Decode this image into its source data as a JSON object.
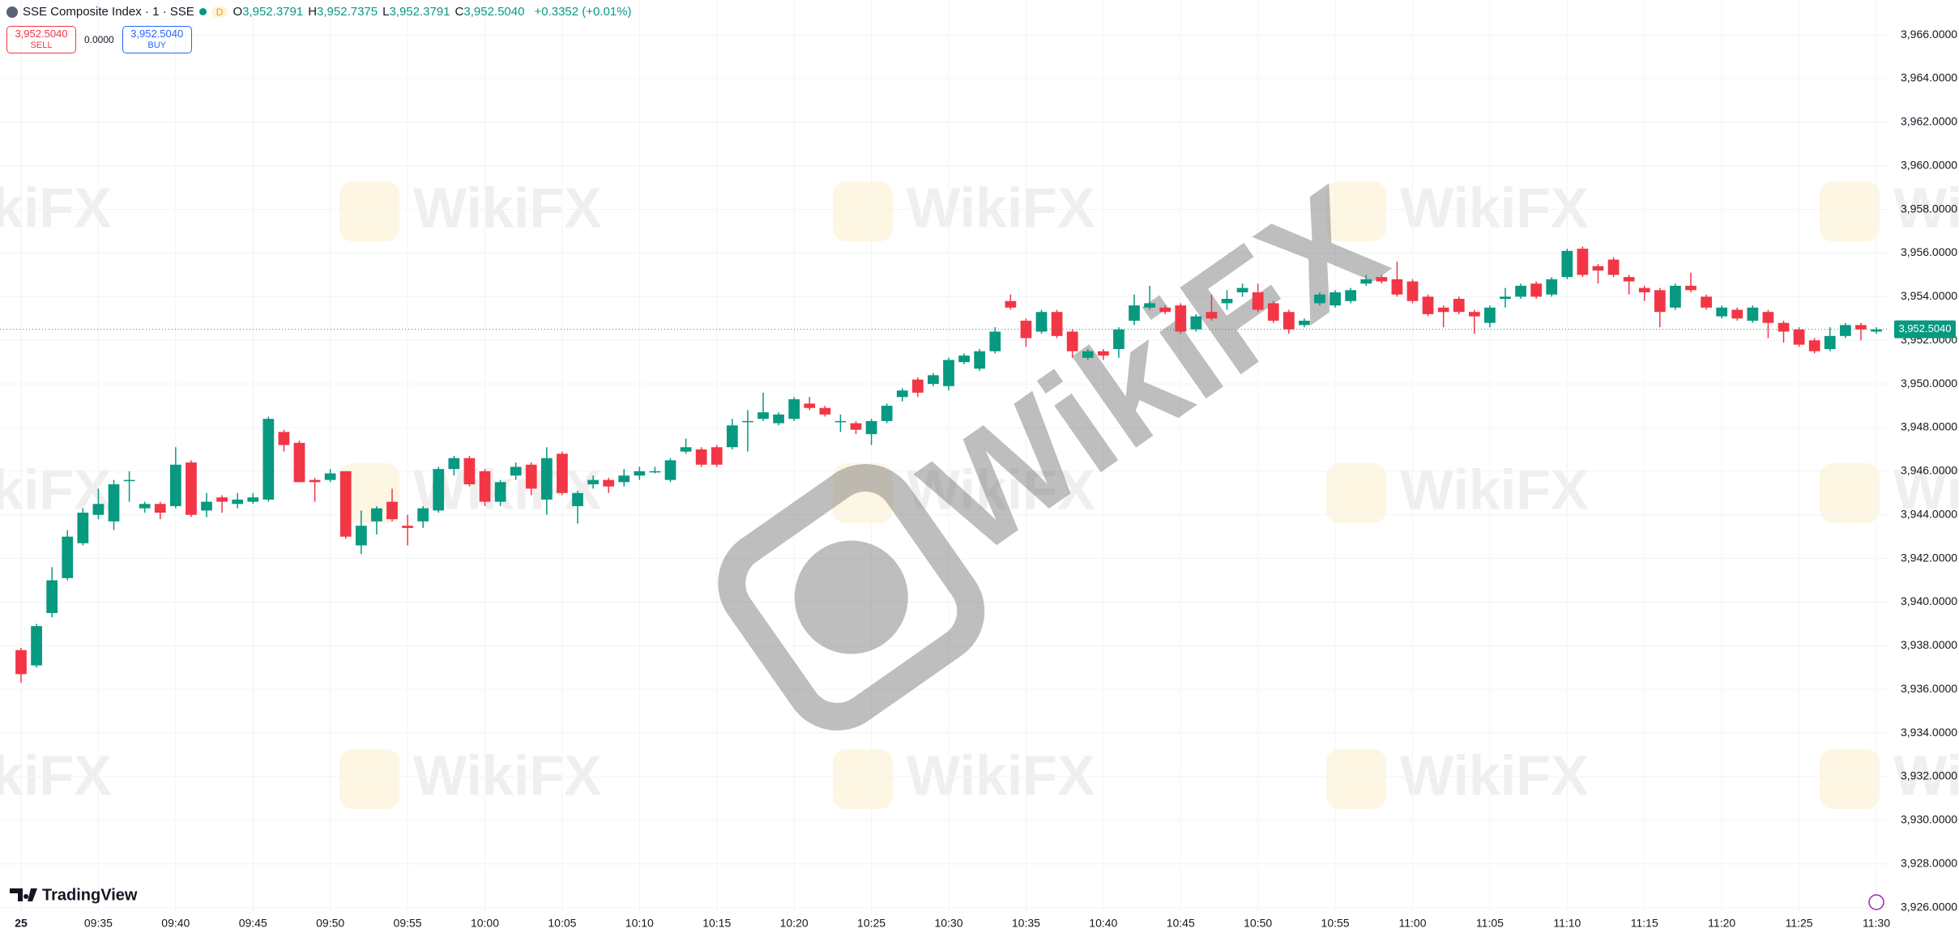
{
  "header": {
    "symbol": "SSE Composite Index · 1 · SSE",
    "badge": "D",
    "ohlc": [
      {
        "key": "O",
        "value": "3,952.3791"
      },
      {
        "key": "H",
        "value": "3,952.7375"
      },
      {
        "key": "L",
        "value": "3,952.3791"
      },
      {
        "key": "C",
        "value": "3,952.5040"
      }
    ],
    "change": "+0.3352 (+0.01%)"
  },
  "trade": {
    "sell_price": "3,952.5040",
    "sell": "SELL",
    "spread": "0.0000",
    "buy_price": "3,952.5040",
    "buy": "BUY"
  },
  "branding": {
    "logo": "TradingView",
    "watermark": "WikiFX"
  },
  "chart_data": {
    "type": "candlestick",
    "up_color": "#089981",
    "down_color": "#f23645",
    "grid": true,
    "ylim": [
      3925.8,
      3967.6
    ],
    "yticks": [
      {
        "value": 3926,
        "label": "3,926.0000"
      },
      {
        "value": 3928,
        "label": "3,928.0000"
      },
      {
        "value": 3930,
        "label": "3,930.0000"
      },
      {
        "value": 3932,
        "label": "3,932.0000"
      },
      {
        "value": 3934,
        "label": "3,934.0000"
      },
      {
        "value": 3936,
        "label": "3,936.0000"
      },
      {
        "value": 3938,
        "label": "3,938.0000"
      },
      {
        "value": 3940,
        "label": "3,940.0000"
      },
      {
        "value": 3942,
        "label": "3,942.0000"
      },
      {
        "value": 3944,
        "label": "3,944.0000"
      },
      {
        "value": 3946,
        "label": "3,946.0000"
      },
      {
        "value": 3948,
        "label": "3,948.0000"
      },
      {
        "value": 3950,
        "label": "3,950.0000"
      },
      {
        "value": 3952,
        "label": "3,952.0000"
      },
      {
        "value": 3954,
        "label": "3,954.0000"
      },
      {
        "value": 3956,
        "label": "3,956.0000"
      },
      {
        "value": 3958,
        "label": "3,958.0000"
      },
      {
        "value": 3960,
        "label": "3,960.0000"
      },
      {
        "value": 3962,
        "label": "3,962.0000"
      },
      {
        "value": 3964,
        "label": "3,964.0000"
      },
      {
        "value": 3966,
        "label": "3,966.0000"
      }
    ],
    "last_price": {
      "value": 3952.504,
      "label": "3,952.5040"
    },
    "categories": [
      "25",
      null,
      null,
      null,
      null,
      "09:35",
      null,
      null,
      null,
      null,
      "09:40",
      null,
      null,
      null,
      null,
      "09:45",
      null,
      null,
      null,
      null,
      "09:50",
      null,
      null,
      null,
      null,
      "09:55",
      null,
      null,
      null,
      null,
      "10:00",
      null,
      null,
      null,
      null,
      "10:05",
      null,
      null,
      null,
      null,
      "10:10",
      null,
      null,
      null,
      null,
      "10:15",
      null,
      null,
      null,
      null,
      "10:20",
      null,
      null,
      null,
      null,
      "10:25",
      null,
      null,
      null,
      null,
      "10:30",
      null,
      null,
      null,
      null,
      "10:35",
      null,
      null,
      null,
      null,
      "10:40",
      null,
      null,
      null,
      null,
      "10:45",
      null,
      null,
      null,
      null,
      "10:50",
      null,
      null,
      null,
      null,
      "10:55",
      null,
      null,
      null,
      null,
      "11:00",
      null,
      null,
      null,
      null,
      "11:05",
      null,
      null,
      null,
      null,
      "11:10",
      null,
      null,
      null,
      null,
      "11:15",
      null,
      null,
      null,
      null,
      "11:20",
      null,
      null,
      null,
      null,
      "11:25",
      null,
      null,
      null,
      null,
      "11:30"
    ],
    "open": [
      3937.8,
      3937.1,
      3939.5,
      3941.1,
      3942.7,
      3944.0,
      3943.7,
      3945.6,
      3944.3,
      3944.5,
      3944.4,
      3946.4,
      3944.2,
      3944.8,
      3944.5,
      3944.6,
      3944.7,
      3947.8,
      3947.3,
      3945.6,
      3945.6,
      3946.0,
      3942.6,
      3943.7,
      3944.6,
      3943.5,
      3943.7,
      3944.2,
      3946.1,
      3946.6,
      3946.0,
      3944.6,
      3945.8,
      3946.3,
      3944.7,
      3946.8,
      3944.4,
      3945.4,
      3945.6,
      3945.5,
      3945.8,
      3946.0,
      3945.6,
      3946.9,
      3947.0,
      3947.1,
      3947.1,
      3948.3,
      3948.4,
      3948.2,
      3948.4,
      3949.1,
      3948.9,
      3948.3,
      3948.2,
      3947.7,
      3948.3,
      3949.4,
      3950.2,
      3950.0,
      3949.9,
      3951.0,
      3950.7,
      3951.5,
      3953.8,
      3952.9,
      3952.4,
      3953.3,
      3952.4,
      3951.2,
      3951.5,
      3951.6,
      3952.9,
      3953.5,
      3953.5,
      3953.6,
      3952.5,
      3953.3,
      3953.7,
      3954.2,
      3954.2,
      3953.7,
      3953.3,
      3952.7,
      3953.7,
      3953.6,
      3953.8,
      3954.6,
      3954.9,
      3954.8,
      3954.7,
      3954.0,
      3953.5,
      3953.9,
      3953.3,
      3952.8,
      3953.9,
      3954.0,
      3954.6,
      3954.1,
      3954.9,
      3956.2,
      3955.4,
      3955.7,
      3954.9,
      3954.4,
      3954.3,
      3953.5,
      3954.5,
      3954.0,
      3953.1,
      3953.4,
      3952.9,
      3953.3,
      3952.8,
      3952.5,
      3952.0,
      3951.6,
      3952.2,
      3952.7,
      3952.4
    ],
    "high": [
      3937.9,
      3939.0,
      3941.6,
      3943.3,
      3944.3,
      3945.2,
      3945.6,
      3946.0,
      3944.6,
      3944.6,
      3947.1,
      3946.5,
      3945.0,
      3944.9,
      3945.0,
      3945.0,
      3948.5,
      3947.9,
      3947.4,
      3945.7,
      3946.1,
      3946.0,
      3944.2,
      3944.4,
      3945.2,
      3944.0,
      3944.4,
      3946.2,
      3946.7,
      3946.7,
      3946.1,
      3945.6,
      3946.4,
      3946.4,
      3947.1,
      3946.9,
      3945.1,
      3945.8,
      3945.7,
      3946.1,
      3946.2,
      3946.2,
      3946.6,
      3947.5,
      3947.1,
      3947.2,
      3948.4,
      3948.8,
      3949.6,
      3948.7,
      3949.4,
      3949.4,
      3949.0,
      3948.6,
      3948.3,
      3948.4,
      3949.1,
      3949.8,
      3950.3,
      3950.5,
      3951.2,
      3951.4,
      3951.6,
      3952.6,
      3954.1,
      3953.0,
      3953.4,
      3953.4,
      3952.5,
      3951.6,
      3951.6,
      3952.6,
      3954.1,
      3954.5,
      3953.6,
      3953.7,
      3953.2,
      3954.1,
      3954.3,
      3954.6,
      3954.6,
      3953.8,
      3953.4,
      3953.0,
      3954.2,
      3954.3,
      3954.4,
      3955.0,
      3955.0,
      3955.6,
      3954.8,
      3954.1,
      3953.6,
      3954.0,
      3953.4,
      3953.6,
      3954.4,
      3954.6,
      3954.7,
      3954.9,
      3956.2,
      3956.3,
      3955.5,
      3955.8,
      3955.0,
      3954.5,
      3954.4,
      3954.6,
      3955.1,
      3954.1,
      3953.6,
      3953.5,
      3953.6,
      3953.4,
      3952.9,
      3952.6,
      3952.1,
      3952.6,
      3952.8,
      3952.8,
      3952.6
    ],
    "low": [
      3936.3,
      3937.0,
      3939.3,
      3941.0,
      3942.6,
      3943.8,
      3943.3,
      3944.6,
      3944.1,
      3943.8,
      3944.3,
      3943.9,
      3943.9,
      3944.1,
      3944.3,
      3944.5,
      3944.6,
      3946.9,
      3945.5,
      3944.6,
      3945.5,
      3942.9,
      3942.2,
      3943.1,
      3943.7,
      3942.6,
      3943.4,
      3944.1,
      3945.8,
      3945.3,
      3944.4,
      3944.4,
      3945.6,
      3944.9,
      3944.0,
      3944.9,
      3943.6,
      3945.2,
      3945.0,
      3945.3,
      3945.6,
      3945.9,
      3945.5,
      3946.8,
      3946.2,
      3946.2,
      3947.0,
      3946.9,
      3948.3,
      3948.1,
      3948.3,
      3948.8,
      3948.5,
      3947.8,
      3947.7,
      3947.2,
      3948.2,
      3949.2,
      3949.4,
      3949.9,
      3949.7,
      3950.9,
      3950.6,
      3951.4,
      3953.4,
      3951.7,
      3952.3,
      3952.1,
      3951.2,
      3951.1,
      3951.1,
      3951.2,
      3952.7,
      3953.4,
      3953.2,
      3952.3,
      3952.4,
      3952.9,
      3953.4,
      3954.0,
      3953.3,
      3952.8,
      3952.3,
      3952.6,
      3953.6,
      3953.5,
      3953.7,
      3954.5,
      3954.6,
      3954.0,
      3953.7,
      3953.1,
      3952.6,
      3953.2,
      3952.3,
      3952.6,
      3953.5,
      3953.9,
      3953.9,
      3954.0,
      3954.8,
      3954.9,
      3954.6,
      3954.9,
      3954.1,
      3953.8,
      3952.6,
      3953.4,
      3954.2,
      3953.4,
      3953.0,
      3952.9,
      3952.8,
      3952.1,
      3951.9,
      3951.7,
      3951.4,
      3951.5,
      3952.1,
      3952.0,
      3952.3
    ],
    "close": [
      3936.7,
      3938.9,
      3941.0,
      3943.0,
      3944.1,
      3944.5,
      3945.4,
      3945.6,
      3944.5,
      3944.1,
      3946.3,
      3944.0,
      3944.6,
      3944.6,
      3944.7,
      3944.8,
      3948.4,
      3947.2,
      3945.5,
      3945.5,
      3945.9,
      3943.0,
      3943.5,
      3944.3,
      3943.8,
      3943.4,
      3944.3,
      3946.1,
      3946.6,
      3945.4,
      3944.6,
      3945.5,
      3946.2,
      3945.2,
      3946.6,
      3945.0,
      3945.0,
      3945.6,
      3945.3,
      3945.8,
      3946.0,
      3946.0,
      3946.5,
      3947.1,
      3946.3,
      3946.3,
      3948.1,
      3948.3,
      3948.7,
      3948.6,
      3949.3,
      3948.9,
      3948.6,
      3948.3,
      3947.9,
      3948.3,
      3949.0,
      3949.7,
      3949.6,
      3950.4,
      3951.1,
      3951.3,
      3951.5,
      3952.4,
      3953.5,
      3952.1,
      3953.3,
      3952.2,
      3951.5,
      3951.5,
      3951.3,
      3952.5,
      3953.6,
      3953.7,
      3953.3,
      3952.4,
      3953.1,
      3953.0,
      3953.9,
      3954.4,
      3953.4,
      3952.9,
      3952.5,
      3952.9,
      3954.1,
      3954.2,
      3954.3,
      3954.8,
      3954.7,
      3954.1,
      3953.8,
      3953.2,
      3953.3,
      3953.3,
      3953.1,
      3953.5,
      3954.0,
      3954.5,
      3954.0,
      3954.8,
      3956.1,
      3955.0,
      3955.2,
      3955.0,
      3954.7,
      3954.2,
      3953.3,
      3954.5,
      3954.3,
      3953.5,
      3953.5,
      3953.0,
      3953.5,
      3952.8,
      3952.4,
      3951.8,
      3951.5,
      3952.2,
      3952.7,
      3952.5,
      3952.5
    ]
  }
}
